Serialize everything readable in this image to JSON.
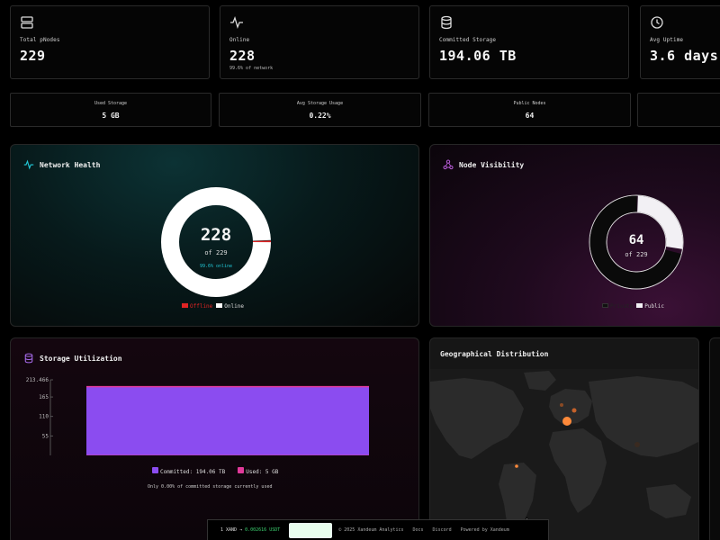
{
  "stats": [
    {
      "label": "Total pNodes",
      "value": "229",
      "sub": "",
      "icon": "server-icon"
    },
    {
      "label": "Online",
      "value": "228",
      "sub": "99.6% of network",
      "icon": "activity-icon"
    },
    {
      "label": "Committed Storage",
      "value": "194.06 TB",
      "sub": "",
      "icon": "database-icon"
    },
    {
      "label": "Avg Uptime",
      "value": "3.6 days",
      "sub": "",
      "icon": "clock-icon"
    }
  ],
  "mini_stats": [
    {
      "label": "Used Storage",
      "value": "5 GB"
    },
    {
      "label": "Avg Storage Usage",
      "value": "0.22%"
    },
    {
      "label": "Public Nodes",
      "value": "64"
    }
  ],
  "health": {
    "title": "Network Health",
    "center_value": "228",
    "center_sub": "of 229",
    "center_note": "99.6% online",
    "online": 228,
    "total": 229,
    "legend_offline": "Offline",
    "legend_online": "Online",
    "colors": {
      "offline": "#e02424",
      "online": "#ffffff",
      "accent": "#22c7d6"
    }
  },
  "visibility": {
    "title": "Node Visibility",
    "center_value": "64",
    "center_sub": "of 229",
    "public": 64,
    "total": 229,
    "legend_private": "Private",
    "legend_public": "Public",
    "colors": {
      "private": "#0a0a0a",
      "public": "#f2f0f4",
      "accent": "#b65bd6"
    }
  },
  "storage": {
    "title": "Storage Utilization",
    "legend_committed": "Committed: 194.06 TB",
    "legend_used": "Used: 5 GB",
    "note": "Only 0.00% of committed storage currently used",
    "colors": {
      "committed": "#8b4cf0",
      "used": "#e03a9a"
    }
  },
  "chart_data": {
    "type": "area",
    "ylim": [
      0,
      213.466
    ],
    "y_ticks": [
      "213.466",
      "165",
      "110",
      "55"
    ],
    "series": [
      {
        "name": "Committed",
        "values": [
          194.06,
          194.06
        ]
      },
      {
        "name": "Used",
        "values": [
          0.005,
          0.005
        ]
      }
    ]
  },
  "geo": {
    "title": "Geographical Distribution"
  },
  "footer": {
    "price_prefix": "1 XAND →",
    "price_value": "0.002616 USDT",
    "copyright": "© 2025 Xandeum Analytics",
    "links": [
      "Docs",
      "Discord",
      "Powered by Xandeum"
    ]
  }
}
